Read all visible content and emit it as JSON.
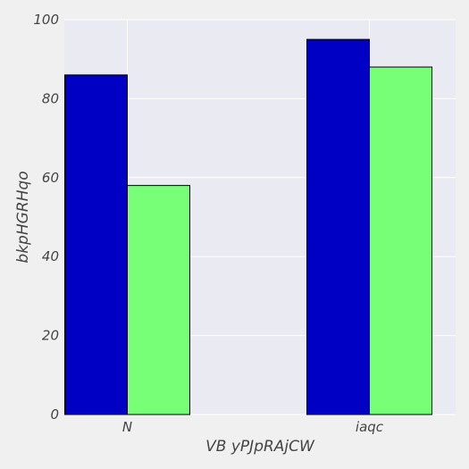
{
  "chart_data": {
    "type": "bar",
    "title": "",
    "xlabel": "VB  yPJpRAjCW",
    "ylabel": "bkpHGRHqo",
    "categories": [
      "N",
      "iaqc"
    ],
    "series": [
      {
        "values": [
          86,
          95
        ],
        "color": "#0000c4"
      },
      {
        "values": [
          58,
          88
        ],
        "color": "#78ff78"
      }
    ],
    "ylim": [
      0,
      100
    ],
    "yticks": [
      0,
      20,
      40,
      60,
      80,
      100
    ],
    "grid": true,
    "legend": "none",
    "colors": {
      "plot_background": "#eaeaf2",
      "page_background": "#f0f0f0",
      "grid": "#ffffff",
      "bar_edge": "#000000"
    }
  }
}
